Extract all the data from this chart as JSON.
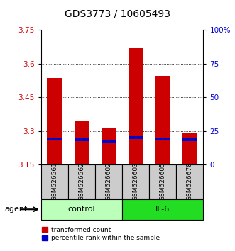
{
  "title": "GDS3773 / 10605493",
  "samples": [
    "GSM526561",
    "GSM526562",
    "GSM526602",
    "GSM526603",
    "GSM526605",
    "GSM526678"
  ],
  "groups": [
    "control",
    "control",
    "control",
    "IL-6",
    "IL-6",
    "IL-6"
  ],
  "bar_tops": [
    3.535,
    3.345,
    3.315,
    3.67,
    3.545,
    3.29
  ],
  "bar_bottoms": [
    3.15,
    3.15,
    3.15,
    3.15,
    3.15,
    3.15
  ],
  "percentile_values": [
    3.265,
    3.26,
    3.255,
    3.27,
    3.265,
    3.26
  ],
  "ylim": [
    3.15,
    3.75
  ],
  "yticks_left": [
    3.15,
    3.3,
    3.45,
    3.6,
    3.75
  ],
  "yticks_right": [
    0,
    25,
    50,
    75,
    100
  ],
  "bar_color": "#cc0000",
  "percentile_color": "#0000cc",
  "bar_width": 0.55,
  "control_color": "#bbffbb",
  "il6_color": "#22dd22",
  "sample_bg_color": "#cccccc",
  "legend_bar_label": "transformed count",
  "legend_pct_label": "percentile rank within the sample",
  "agent_label": "agent",
  "yticks_left_color": "#cc0000",
  "yticks_right_color": "#0000cc",
  "title_fontsize": 10,
  "tick_fontsize": 7.5,
  "sample_fontsize": 6.5,
  "group_fontsize": 8,
  "legend_fontsize": 6.5
}
